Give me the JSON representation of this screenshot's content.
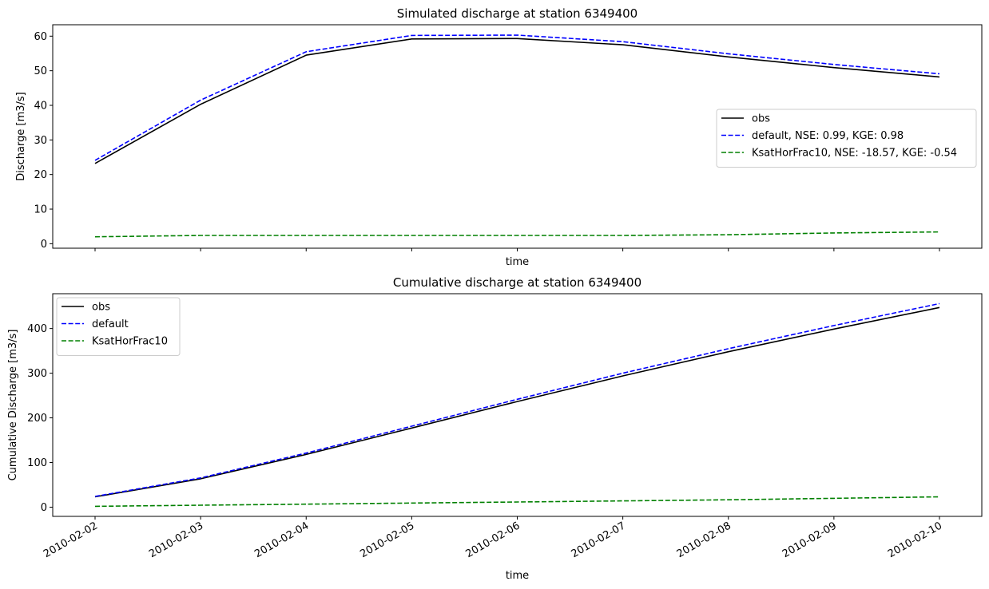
{
  "chart_data": [
    {
      "type": "line",
      "title": "Simulated discharge at station 6349400",
      "xlabel": "time",
      "ylabel": "Discharge [m3/s]",
      "x": [
        "2010-02-02",
        "2010-02-03",
        "2010-02-04",
        "2010-02-05",
        "2010-02-06",
        "2010-02-07",
        "2010-02-08",
        "2010-02-09",
        "2010-02-10"
      ],
      "x_tick_labels_visible": false,
      "ylim": [
        -1.3,
        63.3
      ],
      "yticks": [
        0,
        10,
        20,
        30,
        40,
        50,
        60
      ],
      "legend_position": "center-right",
      "series": [
        {
          "name": "obs",
          "color": "#000000",
          "dash": "solid",
          "values": [
            23.2,
            40.3,
            54.5,
            59.2,
            59.3,
            57.5,
            54.0,
            50.9,
            48.2
          ]
        },
        {
          "name": "default, NSE: 0.99, KGE: 0.98",
          "color": "#0000ff",
          "dash": "dashed",
          "values": [
            24.1,
            41.5,
            55.5,
            60.2,
            60.3,
            58.4,
            54.9,
            51.8,
            49.1
          ]
        },
        {
          "name": "KsatHorFrac10, NSE: -18.57, KGE: -0.54",
          "color": "#008000",
          "dash": "dashed",
          "values": [
            2.0,
            2.4,
            2.4,
            2.4,
            2.4,
            2.4,
            2.6,
            3.1,
            3.4
          ]
        }
      ]
    },
    {
      "type": "line",
      "title": "Cumulative discharge at station 6349400",
      "xlabel": "time",
      "ylabel": "Cumulative Discharge [m3/s]",
      "x": [
        "2010-02-02",
        "2010-02-03",
        "2010-02-04",
        "2010-02-05",
        "2010-02-06",
        "2010-02-07",
        "2010-02-08",
        "2010-02-09",
        "2010-02-10"
      ],
      "ylim": [
        -20.6,
        478
      ],
      "yticks": [
        0,
        100,
        200,
        300,
        400
      ],
      "legend_position": "top-left",
      "series": [
        {
          "name": "obs",
          "color": "#000000",
          "dash": "solid",
          "values": [
            23.2,
            63.5,
            118.0,
            177.2,
            236.5,
            294.0,
            348.0,
            398.9,
            447.1
          ]
        },
        {
          "name": "default",
          "color": "#0000ff",
          "dash": "dashed",
          "values": [
            24.1,
            65.6,
            121.1,
            181.3,
            241.6,
            300.0,
            354.9,
            406.7,
            455.8
          ]
        },
        {
          "name": "KsatHorFrac10",
          "color": "#008000",
          "dash": "dashed",
          "values": [
            2.0,
            4.4,
            6.8,
            9.2,
            11.6,
            14.0,
            16.6,
            19.7,
            23.1
          ]
        }
      ]
    }
  ]
}
